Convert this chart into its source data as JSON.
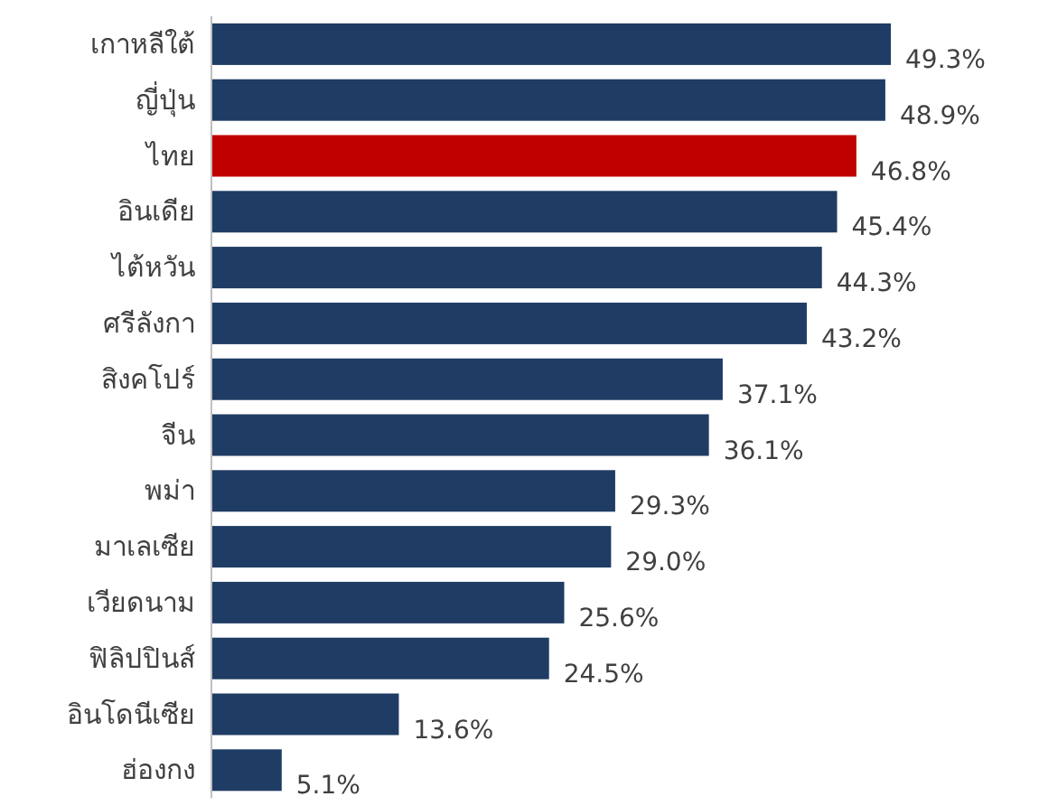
{
  "chart_data": {
    "type": "bar",
    "orientation": "horizontal",
    "categories": [
      "เกาหลีใต้",
      "ญี่ปุ่น",
      "ไทย",
      "อินเดีย",
      "ไต้หวัน",
      "ศรีลังกา",
      "สิงคโปร์",
      "จีน",
      "พม่า",
      "มาเลเซีย",
      "เวียดนาม",
      "ฟิลิปปินส์",
      "อินโดนีเซีย",
      "ฮ่องกง"
    ],
    "values": [
      49.3,
      48.9,
      46.8,
      45.4,
      44.3,
      43.2,
      37.1,
      36.1,
      29.3,
      29.0,
      25.6,
      24.5,
      13.6,
      5.1
    ],
    "value_labels": [
      "49.3%",
      "48.9%",
      "46.8%",
      "45.4%",
      "44.3%",
      "43.2%",
      "37.1%",
      "36.1%",
      "29.3%",
      "29.0%",
      "25.6%",
      "24.5%",
      "13.6%",
      "5.1%"
    ],
    "colors": [
      "#1f3c64",
      "#1f3c64",
      "#c00000",
      "#1f3c64",
      "#1f3c64",
      "#1f3c64",
      "#1f3c64",
      "#1f3c64",
      "#1f3c64",
      "#1f3c64",
      "#1f3c64",
      "#1f3c64",
      "#1f3c64",
      "#1f3c64"
    ]
  }
}
